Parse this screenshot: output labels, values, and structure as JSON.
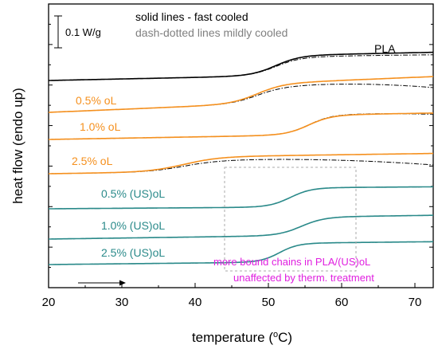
{
  "chart_data": {
    "type": "line",
    "xlabel_main": "temperature (",
    "xlabel_unit": "C)",
    "ylabel": "heat flow (endo up)",
    "xlim": [
      20,
      72.5
    ],
    "x_ticks": [
      20,
      30,
      40,
      50,
      60,
      70
    ],
    "scale_bar_label": "0.1 W/g",
    "legend": {
      "solid": "solid lines - fast cooled",
      "dashdot": "dash-dotted lines mildly cooled"
    },
    "annotation": {
      "line1": "more bound chains in PLA/(US)oL",
      "line2": "unaffected by therm. treatment"
    },
    "colors": {
      "PLA": "#000000",
      "oL": "#f5901e",
      "USoL": "#2a8a8a",
      "mild": "#000000",
      "annotation": "#e020e0",
      "legend_mild": "#808080",
      "box": "#aaaaaa"
    },
    "series": [
      {
        "name": "PLA",
        "label_color": "#000000",
        "baseline": 101,
        "step_start": 45,
        "step_end": 57,
        "step_height": 46,
        "solid_slope": 0.06,
        "mild_step_height": 42,
        "mild_tail": -1
      },
      {
        "name": "0.5% oL",
        "label_color": "#f5901e",
        "baseline": 141,
        "step_start": 42,
        "step_end": 55,
        "step_height": 45,
        "solid_slope": 0.12,
        "mild_step_height": 38,
        "mild_tail": -10
      },
      {
        "name": "1.0% oL",
        "label_color": "#f5901e",
        "baseline": 175,
        "step_start": 50,
        "step_end": 61,
        "step_height": 45,
        "solid_slope": 0.05,
        "mild_step_height": 46,
        "mild_tail": -2
      },
      {
        "name": "2.5% oL",
        "label_color": "#f5901e",
        "baseline": 218,
        "step_start": 30,
        "step_end": 47,
        "step_height": 34,
        "solid_slope": 0.04,
        "mild_step_height": 26,
        "mild_tail": -10
      },
      {
        "name": "0.5% (US)oL",
        "label_color": "#2a8a8a",
        "baseline": 262,
        "step_start": 48,
        "step_end": 58,
        "step_height": 44,
        "solid_slope": 0.02,
        "mild_step_height": 44,
        "mild_tail": 0
      },
      {
        "name": "1.0% (US)oL",
        "label_color": "#2a8a8a",
        "baseline": 300,
        "step_start": 49,
        "step_end": 60,
        "step_height": 42,
        "solid_slope": 0.04,
        "mild_step_height": 42,
        "mild_tail": 0
      },
      {
        "name": "2.5% (US)oL",
        "label_color": "#2a8a8a",
        "baseline": 332,
        "step_start": 47,
        "step_end": 56,
        "step_height": 43,
        "solid_slope": 0.03,
        "mild_step_height": 43,
        "mild_tail": 0
      }
    ]
  }
}
